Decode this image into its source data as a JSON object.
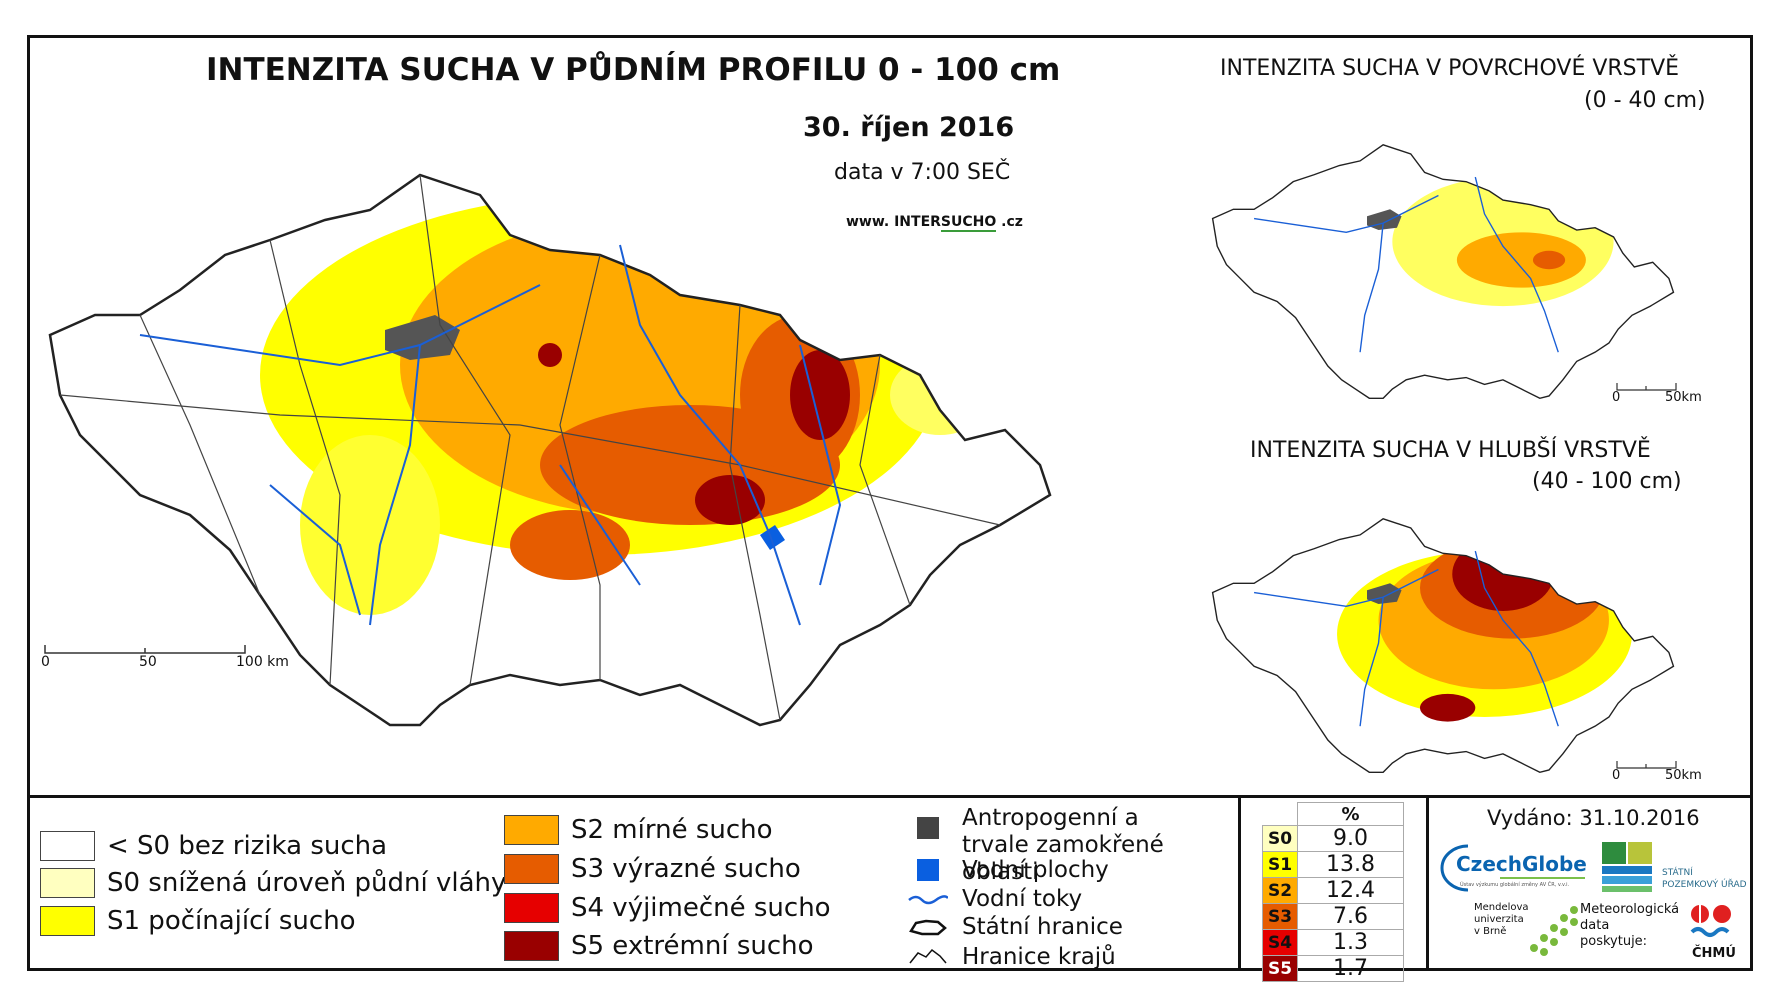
{
  "main": {
    "title": "INTENZITA SUCHA V PŮDNÍM PROFILU 0 - 100 cm",
    "date": "30. říjen 2016",
    "data_time": "data v 7:00 SEČ",
    "website_prefix": "www. INTER",
    "website_highlight": "SUCHO",
    "website_suffix": " .cz",
    "scale_labels": [
      "0",
      "50",
      "100 km"
    ]
  },
  "inset_surface": {
    "title_line1": "INTENZITA SUCHA V POVRCHOVÉ VRSTVĚ",
    "title_line2": "(0 - 40 cm)",
    "scale_labels": [
      "0",
      "50km"
    ]
  },
  "inset_deep": {
    "title_line1": "INTENZITA SUCHA V HLUBŠÍ VRSTVĚ",
    "title_line2": "(40 - 100 cm)",
    "scale_labels": [
      "0",
      "50km"
    ]
  },
  "legend": {
    "classes": [
      {
        "label": "< S0 bez rizika sucha",
        "color": "#ffffff"
      },
      {
        "label": "S0 snížená úroveň půdní vláhy",
        "color": "#ffffc0"
      },
      {
        "label": "S1 počínající sucho",
        "color": "#ffff00"
      },
      {
        "label": "S2 mírné sucho",
        "color": "#ffaa00"
      },
      {
        "label": "S3 výrazné sucho",
        "color": "#e65c00"
      },
      {
        "label": "S4 výjimečné sucho",
        "color": "#e60000"
      },
      {
        "label": "S5 extrémní sucho",
        "color": "#990000"
      }
    ],
    "symbols": [
      {
        "label": "Antropogenní a trvale zamokřené oblasti",
        "icon": "dark-square-icon",
        "color": "#444444"
      },
      {
        "label": "Vodní plochy",
        "icon": "blue-square-icon",
        "color": "#0a5fe0"
      },
      {
        "label": "Vodní toky",
        "icon": "river-line-icon",
        "color": "#1a5fd6"
      },
      {
        "label": "Státní hranice",
        "icon": "state-border-icon",
        "color": "#111111"
      },
      {
        "label": "Hranice krajů",
        "icon": "region-border-icon",
        "color": "#111111"
      }
    ]
  },
  "percent_table": {
    "header": "%",
    "rows": [
      {
        "class": "S0",
        "value": "9.0",
        "color": "#ffffc0"
      },
      {
        "class": "S1",
        "value": "13.8",
        "color": "#ffff00"
      },
      {
        "class": "S2",
        "value": "12.4",
        "color": "#ffaa00"
      },
      {
        "class": "S3",
        "value": "7.6",
        "color": "#e65c00"
      },
      {
        "class": "S4",
        "value": "1.3",
        "color": "#e60000"
      },
      {
        "class": "S5",
        "value": "1.7",
        "color": "#990000"
      }
    ]
  },
  "issued": "Vydáno: 31.10.2016",
  "logos": {
    "czechglobe": "CzechGlobe",
    "czechglobe_sub": "Ústav výzkumu globální změny AV ČR, v.v.i.",
    "spu_line1": "STÁTNÍ",
    "spu_line2": "POZEMKOVÝ ÚŘAD",
    "mendel_line1": "Mendelova",
    "mendel_line2": "univerzita",
    "mendel_line3": "v Brně",
    "meteo_line1": "Meteorologická",
    "meteo_line2": "data",
    "meteo_line3": "poskytuje:",
    "chmu": "ČHMÚ"
  }
}
